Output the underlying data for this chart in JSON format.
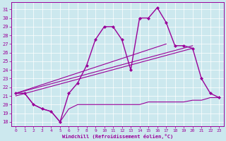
{
  "xlabel": "Windchill (Refroidissement éolien,°C)",
  "background_color": "#cce8ee",
  "line_color": "#990099",
  "xlim": [
    -0.5,
    23.5
  ],
  "ylim": [
    17.5,
    31.8
  ],
  "xticks": [
    0,
    1,
    2,
    3,
    4,
    5,
    6,
    7,
    8,
    9,
    10,
    11,
    12,
    13,
    14,
    15,
    16,
    17,
    18,
    19,
    20,
    21,
    22,
    23
  ],
  "yticks": [
    18,
    19,
    20,
    21,
    22,
    23,
    24,
    25,
    26,
    27,
    28,
    29,
    30,
    31
  ],
  "curve_x": [
    0,
    1,
    2,
    3,
    4,
    5,
    6,
    7,
    8,
    9,
    10,
    11,
    12,
    13,
    14,
    15,
    16,
    17,
    18,
    19,
    20,
    21,
    22,
    23
  ],
  "curve_y": [
    21.3,
    21.3,
    20.0,
    19.5,
    19.2,
    18.0,
    21.3,
    22.5,
    24.5,
    27.5,
    29.0,
    29.0,
    27.5,
    24.0,
    30.0,
    30.0,
    31.2,
    29.5,
    26.8,
    26.8,
    26.5,
    23.0,
    21.3,
    20.8
  ],
  "line1_x": [
    0,
    17
  ],
  "line1_y": [
    21.3,
    27.0
  ],
  "line2_x": [
    0,
    20
  ],
  "line2_y": [
    21.3,
    26.8
  ],
  "line3_x": [
    0,
    20
  ],
  "line3_y": [
    21.0,
    26.5
  ],
  "flat_x": [
    0,
    1,
    2,
    3,
    4,
    5,
    6,
    7,
    8,
    9,
    10,
    11,
    12,
    13,
    14,
    15,
    16,
    17,
    18,
    19,
    20,
    21,
    22,
    23
  ],
  "flat_y": [
    21.3,
    21.3,
    20.0,
    19.5,
    19.2,
    18.0,
    19.5,
    20.0,
    20.0,
    20.0,
    20.0,
    20.0,
    20.0,
    20.0,
    20.0,
    20.3,
    20.3,
    20.3,
    20.3,
    20.3,
    20.5,
    20.5,
    20.8,
    20.8
  ]
}
